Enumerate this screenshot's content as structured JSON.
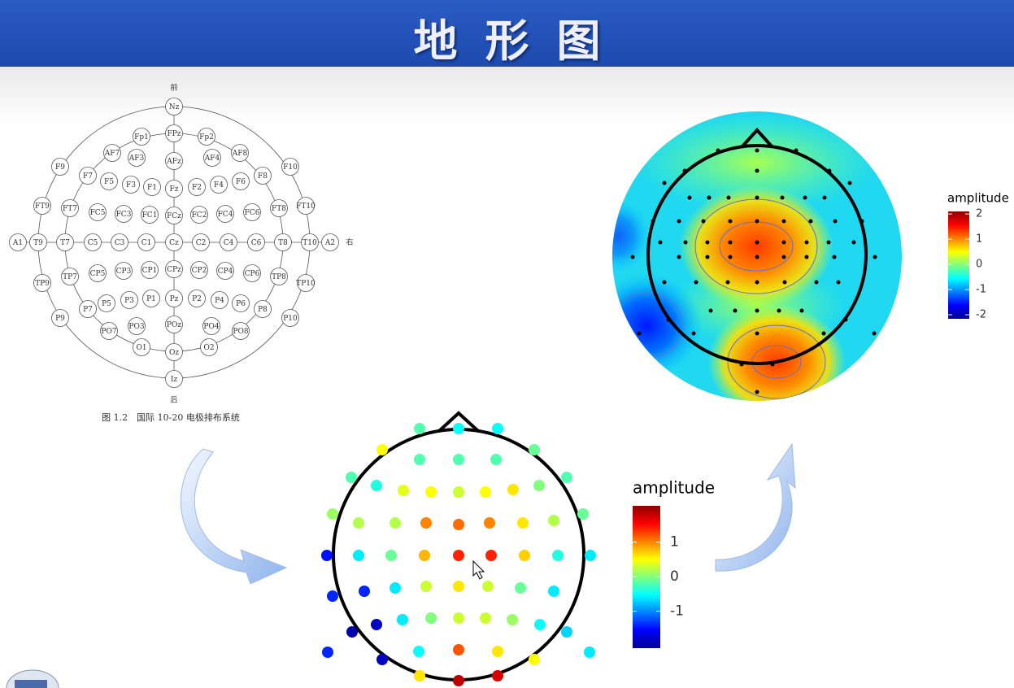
{
  "header": {
    "title": "地形图"
  },
  "electrode_map": {
    "front": "前",
    "back": "后",
    "right": "右",
    "electrodes": [
      "Nz",
      "FPz",
      "Fp1",
      "Fp2",
      "AF7",
      "AF3",
      "AFz",
      "AF4",
      "AF8",
      "F9",
      "F10",
      "F7",
      "F5",
      "F3",
      "F1",
      "Fz",
      "F2",
      "F4",
      "F6",
      "F8",
      "FT9",
      "FT7",
      "FC5",
      "FC3",
      "FC1",
      "FCz",
      "FC2",
      "FC4",
      "FC6",
      "FT8",
      "FT10",
      "A1",
      "T9",
      "T7",
      "C5",
      "C3",
      "C1",
      "Cz",
      "C2",
      "C4",
      "C6",
      "T8",
      "T10",
      "A2",
      "TP9",
      "TP7",
      "CP5",
      "CP3",
      "CP1",
      "CPz",
      "CP2",
      "CP4",
      "CP6",
      "TP8",
      "TP10",
      "P9",
      "P7",
      "P5",
      "P3",
      "P1",
      "Pz",
      "P2",
      "P4",
      "P6",
      "P8",
      "P10",
      "PO7",
      "PO3",
      "POz",
      "PO4",
      "PO8",
      "O1",
      "Oz",
      "O2",
      "Iz"
    ],
    "caption": "图 1.2　国际 10-20 电极排布系统"
  },
  "topomap": {
    "legend_title": "amplitude",
    "ticks": [
      2,
      1,
      0,
      -1,
      -2
    ],
    "lim": [
      -2.16,
      2.1
    ]
  },
  "scalp_dots": {
    "legend_title": "amplitude",
    "ticks": [
      1,
      0,
      -1
    ],
    "lim": [
      -2.07,
      2.05
    ],
    "values": [
      -0.2,
      -0.5,
      -0.5,
      0.5,
      -0.1,
      -0.2,
      -0.2,
      -0.2,
      -0.2,
      -0.2,
      -0.4,
      0.4,
      0.5,
      0.3,
      0.5,
      0.6,
      0,
      0.1,
      -0.1,
      0.2,
      0.2,
      1.0,
      1.1,
      1.0,
      0.6,
      0.2,
      -1.5,
      -0.6,
      -0.1,
      0.8,
      1.4,
      1.4,
      0.7,
      -0.4,
      -0.6,
      -1.4,
      -1.4,
      -0.6,
      0.3,
      0.6,
      0.3,
      -0.1,
      -0.6,
      -0.6,
      0,
      0.3,
      0.3,
      0.1,
      -1.8,
      -0.5,
      -1.9,
      -0.7,
      -1.4,
      -0.5,
      1.2,
      0.6,
      -0.6,
      -1.8,
      0.5,
      0.6,
      1.8,
      1.7
    ]
  }
}
